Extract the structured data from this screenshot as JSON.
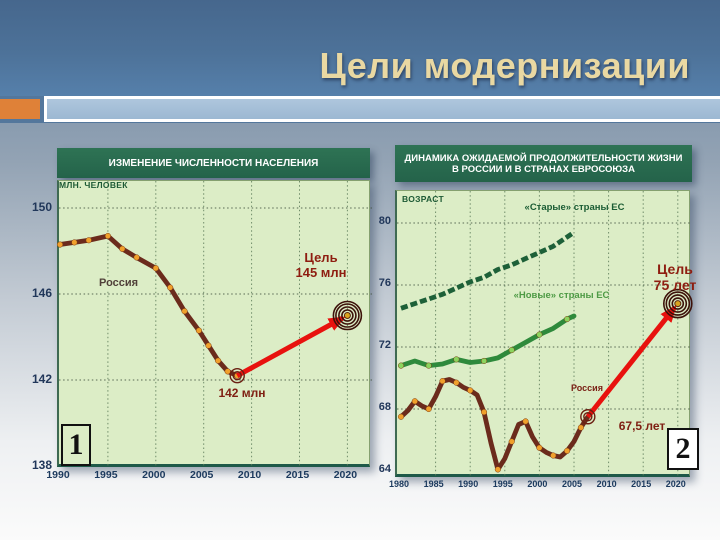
{
  "slide": {
    "title": "Цели модернизации"
  },
  "palette": {
    "orange_accent": "#df8138",
    "bar_blue": "#a3bfd9",
    "title_text": "#e9d8a2",
    "header_green": "#276a4c",
    "plot_background": "#dcedc6",
    "arrow_red": "#e8120e",
    "russia_line": "#6b2b1c",
    "marker_orange": "#f0a02c",
    "old_eu_green": "#1d6038",
    "new_eu_green": "#2f8a3c"
  },
  "chart_data": [
    {
      "type": "line",
      "badge": "1",
      "title": "ИЗМЕНЕНИЕ ЧИСЛЕННОСТИ НАСЕЛЕНИЯ",
      "unit_label": "МЛН. ЧЕЛОВЕК",
      "xlim": [
        1990,
        2020
      ],
      "ylim": [
        138,
        150
      ],
      "xticks": [
        1990,
        1995,
        2000,
        2005,
        2010,
        2015,
        2020
      ],
      "yticks": [
        138,
        142,
        146,
        150
      ],
      "grid": true,
      "series": [
        {
          "name": "Россия",
          "color": "#6b2b1c",
          "marker_color": "#f0a02c",
          "marker_every": 1,
          "x": [
            1990,
            1991.5,
            1993,
            1995,
            1996.5,
            1998,
            2000,
            2001.5,
            2003,
            2004.5,
            2005.5,
            2006.5,
            2007.5,
            2008.5
          ],
          "y": [
            148.3,
            148.4,
            148.5,
            148.7,
            148.1,
            147.7,
            147.2,
            146.3,
            145.2,
            144.3,
            143.6,
            142.9,
            142.4,
            142.2
          ]
        }
      ],
      "endpoint_label": "142 млн",
      "target": {
        "title": "Цель",
        "value": "145 млн",
        "x": 2020,
        "y": 145
      },
      "arrow": {
        "from_x": 2008.5,
        "from_y": 142.2,
        "to_x": 2020,
        "to_y": 145
      }
    },
    {
      "type": "line",
      "badge": "2",
      "title": "ДИНАМИКА ОЖИДАЕМОЙ ПРОДОЛЖИТЕЛЬНОСТИ ЖИЗНИ В РОССИИ И В СТРАНАХ ЕВРОСОЮЗА",
      "unit_label": "ВОЗРАСТ",
      "xlim": [
        1980,
        2020
      ],
      "ylim": [
        64,
        80
      ],
      "xticks": [
        1980,
        1985,
        1990,
        1995,
        2000,
        2005,
        2010,
        2015,
        2020
      ],
      "yticks": [
        64,
        68,
        72,
        76,
        80
      ],
      "grid": true,
      "series": [
        {
          "name": "«Старые» страны ЕС",
          "color": "#1d6038",
          "dash": "7 3",
          "x": [
            1980,
            1982,
            1984,
            1986,
            1988,
            1990,
            1992,
            1994,
            1996,
            1998,
            2000,
            2002,
            2004,
            2005
          ],
          "y": [
            74.5,
            74.8,
            75.1,
            75.4,
            75.8,
            76.2,
            76.5,
            77.0,
            77.3,
            77.7,
            78.1,
            78.5,
            79.1,
            79.4
          ]
        },
        {
          "name": "«Новые» страны ЕС",
          "color": "#2f8a3c",
          "marker_color": "#8cd45e",
          "marker_every": 2,
          "x": [
            1980,
            1982,
            1984,
            1986,
            1988,
            1990,
            1992,
            1994,
            1996,
            1998,
            2000,
            2002,
            2004,
            2005
          ],
          "y": [
            70.8,
            71.1,
            70.8,
            70.9,
            71.2,
            71.0,
            71.1,
            71.3,
            71.8,
            72.3,
            72.8,
            73.2,
            73.8,
            74.0
          ]
        },
        {
          "name": "Россия",
          "color": "#6b2b1c",
          "marker_color": "#f0a02c",
          "marker_every": 2,
          "x": [
            1980,
            1981,
            1982,
            1983,
            1984,
            1985,
            1986,
            1987,
            1988,
            1989,
            1990,
            1991,
            1992,
            1993,
            1994,
            1995,
            1996,
            1997,
            1998,
            1999,
            2000,
            2001,
            2002,
            2003,
            2004,
            2005,
            2006,
            2007
          ],
          "y": [
            67.5,
            67.9,
            68.5,
            68.2,
            68.0,
            68.8,
            69.8,
            69.9,
            69.7,
            69.4,
            69.2,
            68.9,
            67.8,
            65.8,
            64.1,
            64.8,
            65.9,
            67.0,
            67.2,
            66.2,
            65.5,
            65.2,
            65.0,
            64.9,
            65.3,
            65.9,
            66.8,
            67.5
          ]
        }
      ],
      "endpoint_label": "67,5 лет",
      "target": {
        "title": "Цель",
        "value": "75 лет",
        "x": 2020,
        "y": 74.8
      },
      "arrow": {
        "from_x": 2007,
        "from_y": 67.5,
        "to_x": 2020,
        "to_y": 74.8
      }
    }
  ]
}
